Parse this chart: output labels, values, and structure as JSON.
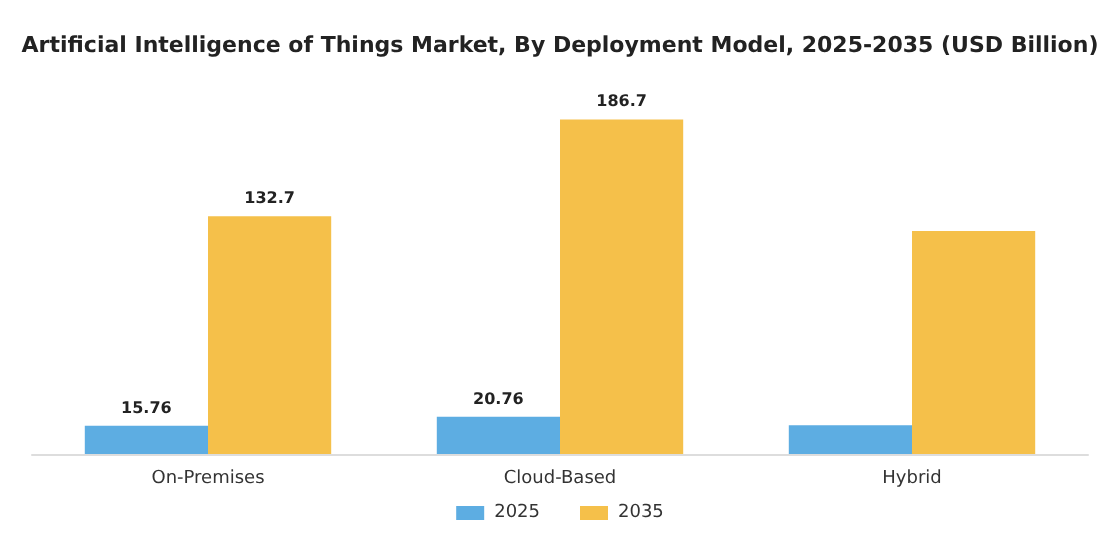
{
  "chart_data": {
    "type": "bar",
    "title": "Artificial Intelligence of Things Market, By Deployment Model, 2025-2035 (USD Billion)",
    "categories": [
      "On-Premises",
      "Cloud-Based",
      "Hybrid"
    ],
    "series": [
      {
        "name": "2025",
        "color": "#5dade2",
        "values": [
          15.76,
          20.76,
          16
        ],
        "value_labels": [
          "15.76",
          "20.76",
          null
        ]
      },
      {
        "name": "2035",
        "color": "#f5c04a",
        "values": [
          132.7,
          186.7,
          124.5
        ],
        "value_labels": [
          "132.7",
          "186.7",
          null
        ]
      }
    ],
    "tick_labels": "x",
    "grid": false,
    "legend": "bottom"
  }
}
